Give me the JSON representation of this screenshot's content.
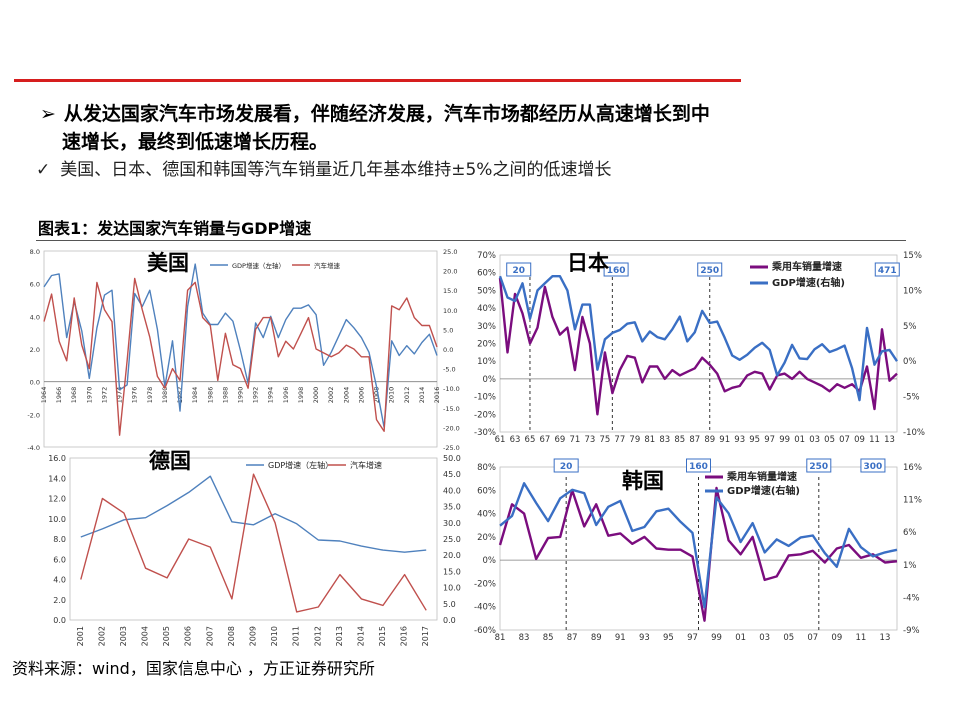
{
  "header": {
    "bullet_marker": "➢",
    "bullet_line1": "从发达国家汽车市场发展看，伴随经济发展，汽车市场都经历从高速增长到中",
    "bullet_line2": "速增长，最终到低速增长历程。",
    "check_marker": "✓",
    "sub_point": "美国、日本、德国和韩国等汽车销量近几年基本维持±5%之间的低速增长"
  },
  "figure_title": "图表1：发达国家汽车销量与GDP增速",
  "source": "资料来源：wind，国家信息中心 ，方正证券研究所",
  "colors": {
    "accent_red": "#d61e1e",
    "gdp_blue": "#4f81bd",
    "auto_red": "#c0504d",
    "jp_purple": "#7b0d7e",
    "jp_blue": "#3a6fc4"
  },
  "chart_data": [
    {
      "type": "line",
      "title": "美国",
      "x": [
        1964,
        1965,
        1966,
        1967,
        1968,
        1969,
        1970,
        1971,
        1972,
        1973,
        1974,
        1975,
        1976,
        1977,
        1978,
        1979,
        1980,
        1981,
        1982,
        1983,
        1984,
        1985,
        1986,
        1987,
        1988,
        1989,
        1990,
        1991,
        1992,
        1993,
        1994,
        1995,
        1996,
        1997,
        1998,
        1999,
        2000,
        2001,
        2002,
        2003,
        2004,
        2005,
        2006,
        2007,
        2008,
        2009,
        2010,
        2011,
        2012,
        2013,
        2014,
        2015,
        2016
      ],
      "x_tick_labels": [
        "1964",
        "1966",
        "1968",
        "1970",
        "1972",
        "1974",
        "1976",
        "1978",
        "1980",
        "1982",
        "1984",
        "1986",
        "1988",
        "1990",
        "1992",
        "1994",
        "1996",
        "1998",
        "2000",
        "2002",
        "2004",
        "2006",
        "2008",
        "2010",
        "2012",
        "2014",
        "2016"
      ],
      "series": [
        {
          "name": "GDP增速（左轴）",
          "axis": "left",
          "values": [
            5.8,
            6.5,
            6.6,
            2.7,
            4.9,
            3.1,
            0.2,
            3.3,
            5.3,
            5.6,
            -0.5,
            -0.2,
            5.4,
            4.6,
            5.6,
            3.2,
            -0.3,
            2.5,
            -1.8,
            4.6,
            7.2,
            4.2,
            3.5,
            3.5,
            4.2,
            3.7,
            1.9,
            -0.1,
            3.6,
            2.7,
            4.0,
            2.7,
            3.8,
            4.5,
            4.5,
            4.7,
            4.1,
            1.0,
            1.8,
            2.8,
            3.8,
            3.3,
            2.7,
            1.8,
            -0.3,
            -2.8,
            2.5,
            1.6,
            2.2,
            1.7,
            2.4,
            2.9,
            1.6
          ]
        },
        {
          "name": "汽车增速",
          "axis": "right",
          "values": [
            7.0,
            14.0,
            2.0,
            -3.0,
            13.0,
            1.0,
            -5.0,
            17.0,
            10.0,
            7.0,
            -22.0,
            -3.0,
            18.0,
            10.0,
            3.0,
            -7.0,
            -10.0,
            -5.0,
            -8.0,
            15.0,
            17.0,
            8.0,
            6.0,
            -8.0,
            4.0,
            -4.0,
            -5.0,
            -10.0,
            5.0,
            8.0,
            8.0,
            -2.0,
            2.0,
            0.0,
            4.0,
            8.0,
            0.0,
            -1.0,
            -2.0,
            -1.0,
            1.0,
            0.0,
            -2.0,
            -2.0,
            -18.0,
            -21.0,
            11.0,
            10.0,
            13.0,
            8.0,
            6.0,
            6.0,
            0.5
          ]
        }
      ],
      "y_left": {
        "range": [
          -4.0,
          8.0
        ],
        "ticks": [
          "8.0",
          "6.0",
          "4.0",
          "2.0",
          "0.0",
          "-2.0",
          "-4.0"
        ]
      },
      "y_right": {
        "range": [
          -25.0,
          25.0
        ],
        "ticks": [
          "25.0",
          "20.0",
          "15.0",
          "10.0",
          "5.0",
          "0.0",
          "-5.0",
          "-10.0",
          "-15.0",
          "-20.0",
          "-25.0"
        ]
      },
      "legend": "top-center"
    },
    {
      "type": "line",
      "title": "日本",
      "x": [
        1961,
        1962,
        1963,
        1964,
        1965,
        1966,
        1967,
        1968,
        1969,
        1970,
        1971,
        1972,
        1973,
        1974,
        1975,
        1976,
        1977,
        1978,
        1979,
        1980,
        1981,
        1982,
        1983,
        1984,
        1985,
        1986,
        1987,
        1988,
        1989,
        1990,
        1991,
        1992,
        1993,
        1994,
        1995,
        1996,
        1997,
        1998,
        1999,
        2000,
        2001,
        2002,
        2003,
        2004,
        2005,
        2006,
        2007,
        2008,
        2009,
        2010,
        2011,
        2012,
        2013,
        2014
      ],
      "x_tick_labels": [
        "61",
        "63",
        "65",
        "67",
        "69",
        "71",
        "73",
        "75",
        "77",
        "79",
        "81",
        "83",
        "85",
        "87",
        "89",
        "91",
        "93",
        "95",
        "97",
        "99",
        "01",
        "03",
        "05",
        "07",
        "09",
        "11",
        "13"
      ],
      "series": [
        {
          "name": "乘用车销量增速",
          "axis": "left",
          "values": [
            57,
            15,
            48,
            37,
            20,
            29,
            52,
            35,
            25,
            29,
            5,
            35,
            20,
            -20,
            15,
            -8,
            5,
            13,
            12,
            -2,
            7,
            7,
            0,
            5,
            2,
            4,
            6,
            12,
            8,
            3,
            -7,
            -5,
            -4,
            2,
            4,
            3,
            -6,
            2,
            3,
            0,
            4,
            0,
            -2,
            -4,
            -7,
            -3,
            -5,
            -3,
            -7,
            7,
            -17,
            28,
            -1,
            3
          ]
        },
        {
          "name": "GDP增速(右轴)",
          "axis": "right",
          "values": [
            12,
            9,
            8.5,
            11,
            6,
            10,
            11,
            12,
            12,
            10,
            4.5,
            8,
            8,
            -1.2,
            3.1,
            4,
            4.4,
            5.3,
            5.5,
            2.8,
            4.2,
            3.4,
            3.1,
            4.5,
            6.3,
            2.8,
            4.1,
            7.1,
            5.4,
            5.6,
            3.3,
            0.8,
            0.2,
            0.9,
            1.9,
            2.6,
            1.6,
            -2,
            -0.2,
            2.3,
            0.4,
            0.3,
            1.7,
            2.4,
            1.3,
            1.7,
            2.2,
            -1,
            -5.5,
            4.7,
            -0.5,
            1.4,
            1.6,
            0
          ]
        }
      ],
      "y_left": {
        "range": [
          -30,
          70
        ],
        "ticks": [
          "70%",
          "60%",
          "50%",
          "40%",
          "30%",
          "20%",
          "10%",
          "0%",
          "-10%",
          "-20%",
          "-30%"
        ]
      },
      "y_right": {
        "range": [
          -10,
          15
        ],
        "ticks": [
          "15%",
          "10%",
          "5%",
          "0%",
          "-5%",
          "-10%"
        ]
      },
      "annotations": [
        "20",
        "160",
        "250",
        "471"
      ],
      "legend": "top-right"
    },
    {
      "type": "line",
      "title": "德国",
      "x": [
        "2001",
        "2002",
        "2003",
        "2004",
        "2005",
        "2006",
        "2007",
        "2008",
        "2009",
        "2010",
        "2011",
        "2012",
        "2013",
        "2014",
        "2015",
        "2016",
        "2017"
      ],
      "series": [
        {
          "name": "GDP增速（左轴）",
          "axis": "left",
          "values": [
            8.2,
            9.0,
            9.9,
            10.1,
            11.3,
            12.6,
            14.2,
            9.7,
            9.4,
            10.5,
            9.5,
            7.9,
            7.8,
            7.3,
            6.9,
            6.7,
            6.9
          ]
        },
        {
          "name": "汽车增速",
          "axis": "right",
          "values": [
            12.5,
            37.5,
            33.0,
            16.0,
            13.0,
            25.0,
            22.5,
            6.5,
            45.0,
            30.0,
            2.5,
            4.0,
            14.0,
            6.5,
            4.5,
            14.0,
            3.0
          ]
        }
      ],
      "y_left": {
        "range": [
          0.0,
          16.0
        ],
        "ticks": [
          "16.0",
          "14.0",
          "12.0",
          "10.0",
          "8.0",
          "6.0",
          "4.0",
          "2.0",
          "0.0"
        ]
      },
      "y_right": {
        "range": [
          0.0,
          50.0
        ],
        "ticks": [
          "50.0",
          "45.0",
          "40.0",
          "35.0",
          "30.0",
          "25.0",
          "20.0",
          "15.0",
          "10.0",
          "5.0",
          "0.0"
        ]
      },
      "legend": "top-center"
    },
    {
      "type": "line",
      "title": "韩国",
      "x": [
        1981,
        1982,
        1983,
        1984,
        1985,
        1986,
        1987,
        1988,
        1989,
        1990,
        1991,
        1992,
        1993,
        1994,
        1995,
        1996,
        1997,
        1998,
        1999,
        2000,
        2001,
        2002,
        2003,
        2004,
        2005,
        2006,
        2007,
        2008,
        2009,
        2010,
        2011,
        2012,
        2013,
        2014
      ],
      "x_tick_labels": [
        "81",
        "83",
        "85",
        "87",
        "89",
        "91",
        "93",
        "95",
        "97",
        "99",
        "01",
        "03",
        "05",
        "07",
        "09",
        "11",
        "13"
      ],
      "series": [
        {
          "name": "乘用车销量增速",
          "axis": "left",
          "values": [
            13,
            48,
            40,
            1,
            19,
            20,
            60,
            29,
            48,
            21,
            23,
            14,
            20,
            10,
            9,
            9,
            3,
            -52,
            62,
            17,
            5,
            20,
            -17,
            -14,
            4,
            5,
            8,
            -2,
            10,
            13,
            2,
            5,
            -2,
            -1
          ]
        },
        {
          "name": "GDP增速(右轴)",
          "axis": "right",
          "values": [
            7,
            8.5,
            13.5,
            10.5,
            7.7,
            11.2,
            12.5,
            12,
            7.1,
            9.9,
            10.8,
            6.2,
            6.8,
            9.2,
            9.6,
            7.6,
            5.9,
            -5.5,
            11.3,
            8.9,
            4.5,
            7.4,
            2.9,
            4.9,
            3.9,
            5.2,
            5.5,
            2.8,
            0.7,
            6.5,
            3.7,
            2.3,
            2.9,
            3.3
          ]
        }
      ],
      "y_left": {
        "range": [
          -60,
          80
        ],
        "ticks": [
          "80%",
          "60%",
          "40%",
          "20%",
          "0%",
          "-20%",
          "-40%",
          "-60%"
        ]
      },
      "y_right": {
        "range": [
          -9,
          16
        ],
        "ticks": [
          "16%",
          "11%",
          "6%",
          "1%",
          "-4%",
          "-9%"
        ]
      },
      "annotations": [
        "20",
        "160",
        "250",
        "300"
      ],
      "legend": "top-center"
    }
  ]
}
